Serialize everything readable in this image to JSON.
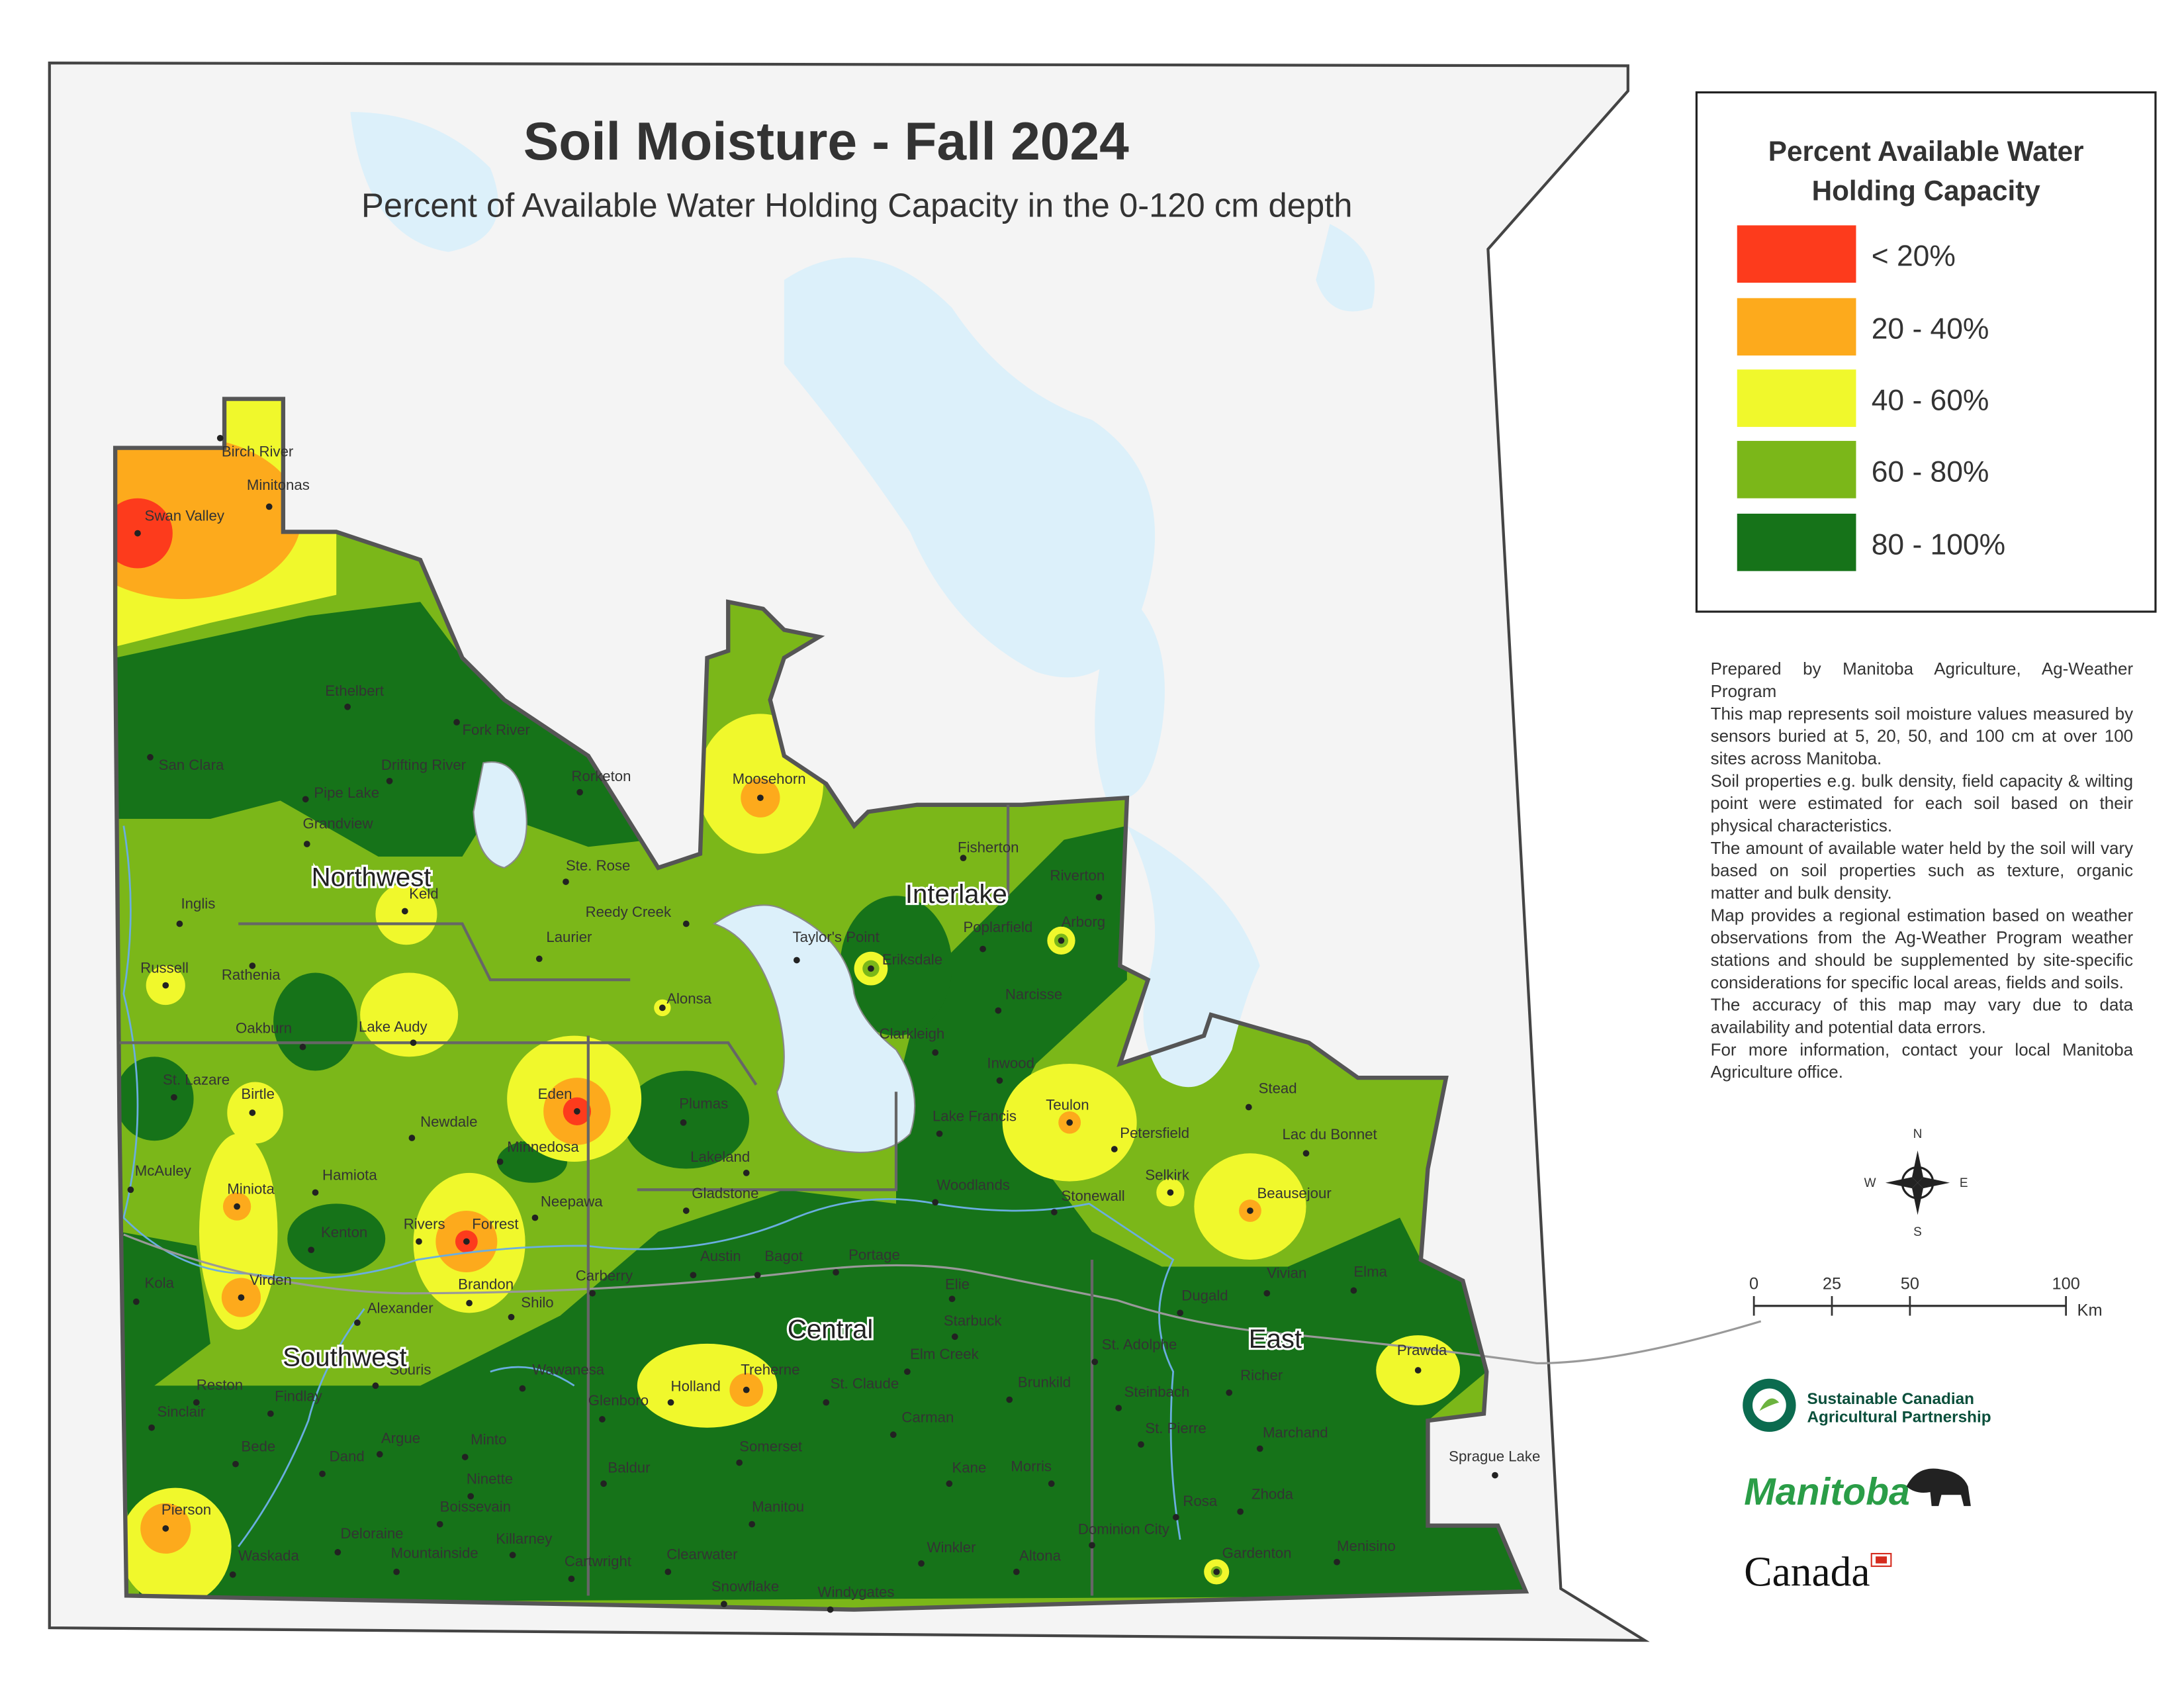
{
  "title": "Soil Moisture - Fall 2024",
  "subtitle": "Percent of Available Water Holding Capacity in the 0-120 cm depth",
  "legend": {
    "title": [
      "Percent Available Water",
      "Holding Capacity"
    ],
    "items": [
      {
        "label": "< 20%",
        "color": "#fd3b1c"
      },
      {
        "label": "20 - 40%",
        "color": "#fdaa1c"
      },
      {
        "label": "40 - 60%",
        "color": "#f0f82c"
      },
      {
        "label": "60 - 80%",
        "color": "#7bb719"
      },
      {
        "label": "80 - 100%",
        "color": "#167319"
      }
    ]
  },
  "notes": [
    "Prepared by Manitoba Agriculture, Ag-Weather Program",
    "This map represents soil moisture values measured by sensors buried at 5, 20, 50, and 100 cm  at  over 100 sites across Manitoba.",
    "Soil properties e.g. bulk density, field capacity & wilting point were estimated for each soil based on their physical characteristics.",
    "The amount of available water held by the soil will vary based on soil properties such as texture, organic matter and bulk density.",
    "Map provides a regional estimation based on weather observations from the Ag-Weather Program weather stations and should be supplemented by site-specific considerations for specific local areas, fields and soils.",
    "The accuracy of this map may vary due to data availability and potential data errors.",
    "For more information, contact your local Manitoba Agriculture office."
  ],
  "compass": {
    "n": "N",
    "e": "E",
    "s": "S",
    "w": "W"
  },
  "scale_bar": {
    "ticks": [
      0,
      25,
      50,
      100
    ],
    "unit": "Km"
  },
  "logos": {
    "partnership": [
      "Sustainable Canadian",
      "Agricultural Partnership"
    ],
    "province": "Manitoba",
    "country": "Canada"
  },
  "regions": [
    "Northwest",
    "Interlake",
    "Southwest",
    "Central",
    "East"
  ],
  "towns": [
    "Birch River",
    "Minitonas",
    "Swan Valley",
    "Ethelbert",
    "Fork River",
    "San Clara",
    "Drifting River",
    "Pipe Lake",
    "Rorketon",
    "Moosehorn",
    "Grandview",
    "Ste. Rose",
    "Fisherton",
    "Riverton",
    "Keld",
    "Inglis",
    "Reedy Creek",
    "Poplarfield",
    "Arborg",
    "Laurier",
    "Taylor's Point",
    "Eriksdale",
    "Russell",
    "Rathenia",
    "Alonsa",
    "Narcisse",
    "Lake Audy",
    "Oakburn",
    "Clarkleigh",
    "Inwood",
    "St. Lazare",
    "Birtle",
    "Eden",
    "Plumas",
    "Teulon",
    "Stead",
    "Lake Francis",
    "Newdale",
    "Petersfield",
    "Lac du Bonnet",
    "Minnedosa",
    "Lakeland",
    "McAuley",
    "Hamiota",
    "Selkirk",
    "Miniota",
    "Woodlands",
    "Gladstone",
    "Stonewall",
    "Beausejour",
    "Neepawa",
    "Rivers",
    "Forrest",
    "Kenton",
    "Austin",
    "Bagot",
    "Portage",
    "Carberry",
    "Vivian",
    "Elma",
    "Kola",
    "Virden",
    "Elie",
    "Brandon",
    "Dugald",
    "Shilo",
    "Alexander",
    "Starbuck",
    "St. Adolphe",
    "Prawda",
    "Elm Creek",
    "Treherne",
    "Souris",
    "Wawanesa",
    "Richer",
    "Holland",
    "St. Claude",
    "Brunkild",
    "Reston",
    "Findlay",
    "Steinbach",
    "Glenboro",
    "Sinclair",
    "Carman",
    "St. Pierre",
    "Marchand",
    "Argue",
    "Minto",
    "Bede",
    "Somerset",
    "Dand",
    "Baldur",
    "Kane",
    "Morris",
    "Ninette",
    "Sprague Lake",
    "Zhoda",
    "Rosa",
    "Manitou",
    "Pierson",
    "Boissevain",
    "Deloraine",
    "Dominion City",
    "Killarney",
    "Menisino",
    "Waskada",
    "Mountainside",
    "Gardenton",
    "Winkler",
    "Altona",
    "Cartwright",
    "Clearwater",
    "Snowflake",
    "Windygates"
  ]
}
